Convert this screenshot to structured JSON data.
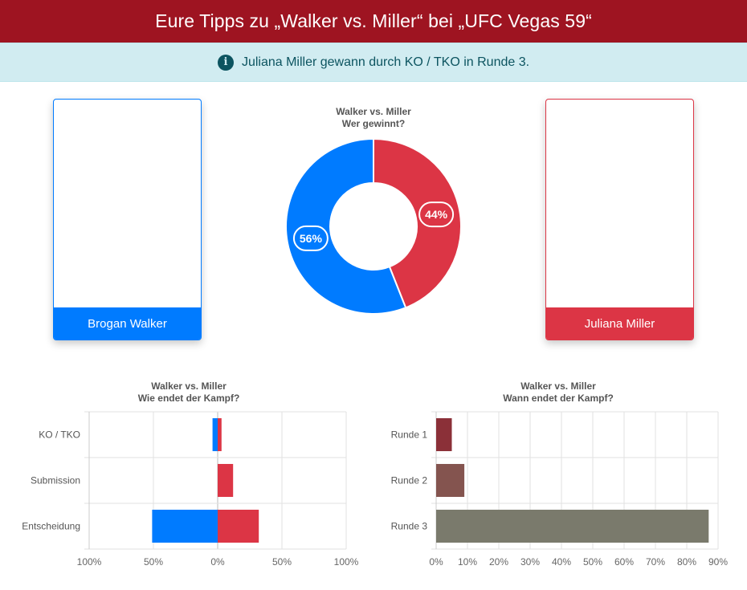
{
  "header": {
    "title": "Eure Tipps zu „Walker vs. Miller“ bei „UFC Vegas 59“"
  },
  "alert": {
    "icon": "info-icon",
    "text": "Juliana Miller gewann durch KO / TKO in Runde 3."
  },
  "fighters": {
    "left": {
      "name": "Brogan Walker",
      "color": "#007bff"
    },
    "right": {
      "name": "Juliana Miller",
      "color": "#dc3545"
    }
  },
  "chart_data": [
    {
      "type": "pie",
      "title": "Walker vs. Miller",
      "subtitle": "Wer gewinnt?",
      "labels": [
        "Brogan Walker",
        "Juliana Miller"
      ],
      "values": [
        56,
        44
      ],
      "display_labels": [
        "56%",
        "44%"
      ],
      "colors": [
        "#007bff",
        "#dc3545"
      ],
      "donut": true
    },
    {
      "type": "bar",
      "orientation": "horizontal",
      "stacked": true,
      "title": "Walker vs. Miller",
      "subtitle": "Wie endet der Kampf?",
      "categories": [
        "KO / TKO",
        "Submission",
        "Entscheidung"
      ],
      "series": [
        {
          "name": "Brogan Walker",
          "color": "#007bff",
          "values": [
            -4,
            0,
            -51
          ]
        },
        {
          "name": "Juliana Miller",
          "color": "#dc3545",
          "values": [
            3,
            12,
            32
          ]
        }
      ],
      "xlim": [
        -100,
        100
      ],
      "ticks": [
        -100,
        -50,
        0,
        50,
        100
      ],
      "tick_labels": [
        "100%",
        "50%",
        "0%",
        "50%",
        "100%"
      ],
      "grid": true
    },
    {
      "type": "bar",
      "orientation": "horizontal",
      "title": "Walker vs. Miller",
      "subtitle": "Wann endet der Kampf?",
      "categories": [
        "Runde 1",
        "Runde 2",
        "Runde 3"
      ],
      "values": [
        5,
        9,
        87
      ],
      "colors": [
        "#8b3038",
        "#84544f",
        "#7a7a6c"
      ],
      "xlim": [
        0,
        90
      ],
      "ticks": [
        0,
        10,
        20,
        30,
        40,
        50,
        60,
        70,
        80,
        90
      ],
      "tick_labels": [
        "0%",
        "10%",
        "20%",
        "30%",
        "40%",
        "50%",
        "60%",
        "70%",
        "80%",
        "90%"
      ],
      "grid": true
    }
  ]
}
